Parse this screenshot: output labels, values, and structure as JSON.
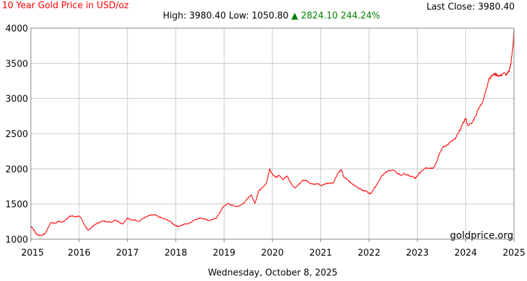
{
  "header": {
    "title": "10 Year Gold Price in USD/oz",
    "last_close_label": "Last Close:",
    "last_close_value": "3980.40",
    "high_label": "High:",
    "high_value": "3980.40",
    "low_label": "Low:",
    "low_value": "1050.80",
    "change_arrow": "▲",
    "change_value": "2824.10",
    "change_pct": "244.24%"
  },
  "footer": {
    "date": "Wednesday, October 8, 2025",
    "watermark": "goldprice.org"
  },
  "colors": {
    "line": "#ff0000",
    "title": "#ff0000",
    "change": "#008000",
    "grid": "#c8c8c8",
    "axis": "#808080"
  },
  "chart_data": {
    "type": "line",
    "title": "10 Year Gold Price in USD/oz",
    "xlabel": "",
    "ylabel": "",
    "xlim": [
      2015,
      2025
    ],
    "ylim": [
      1000,
      4000
    ],
    "x_ticks": [
      "2015",
      "2016",
      "2017",
      "2018",
      "2019",
      "2020",
      "2021",
      "2022",
      "2023",
      "2024",
      "2025"
    ],
    "y_ticks": [
      "1000",
      "1500",
      "2000",
      "2500",
      "3000",
      "3500",
      "4000"
    ],
    "grid": true,
    "series": [
      {
        "color": "#ff0000",
        "points": [
          [
            2015.0,
            1185
          ],
          [
            2015.05,
            1150
          ],
          [
            2015.1,
            1085
          ],
          [
            2015.15,
            1060
          ],
          [
            2015.22,
            1055
          ],
          [
            2015.3,
            1080
          ],
          [
            2015.36,
            1165
          ],
          [
            2015.42,
            1240
          ],
          [
            2015.5,
            1225
          ],
          [
            2015.58,
            1255
          ],
          [
            2015.66,
            1240
          ],
          [
            2015.74,
            1290
          ],
          [
            2015.8,
            1325
          ],
          [
            2015.86,
            1330
          ],
          [
            2015.92,
            1320
          ],
          [
            2016.0,
            1325
          ],
          [
            2016.06,
            1280
          ],
          [
            2016.12,
            1190
          ],
          [
            2016.18,
            1130
          ],
          [
            2016.26,
            1165
          ],
          [
            2016.34,
            1215
          ],
          [
            2016.42,
            1240
          ],
          [
            2016.5,
            1260
          ],
          [
            2016.58,
            1250
          ],
          [
            2016.66,
            1240
          ],
          [
            2016.74,
            1275
          ],
          [
            2016.82,
            1250
          ],
          [
            2016.9,
            1215
          ],
          [
            2017.0,
            1300
          ],
          [
            2017.08,
            1270
          ],
          [
            2017.16,
            1275
          ],
          [
            2017.24,
            1255
          ],
          [
            2017.32,
            1295
          ],
          [
            2017.4,
            1320
          ],
          [
            2017.48,
            1340
          ],
          [
            2017.56,
            1345
          ],
          [
            2017.64,
            1320
          ],
          [
            2017.72,
            1300
          ],
          [
            2017.8,
            1280
          ],
          [
            2017.88,
            1255
          ],
          [
            2017.96,
            1210
          ],
          [
            2018.04,
            1180
          ],
          [
            2018.12,
            1200
          ],
          [
            2018.2,
            1215
          ],
          [
            2018.28,
            1225
          ],
          [
            2018.36,
            1265
          ],
          [
            2018.44,
            1290
          ],
          [
            2018.52,
            1300
          ],
          [
            2018.6,
            1290
          ],
          [
            2018.68,
            1265
          ],
          [
            2018.76,
            1280
          ],
          [
            2018.84,
            1295
          ],
          [
            2018.92,
            1390
          ],
          [
            2019.0,
            1475
          ],
          [
            2019.08,
            1505
          ],
          [
            2019.16,
            1485
          ],
          [
            2019.24,
            1465
          ],
          [
            2019.32,
            1470
          ],
          [
            2019.4,
            1510
          ],
          [
            2019.48,
            1570
          ],
          [
            2019.56,
            1630
          ],
          [
            2019.64,
            1510
          ],
          [
            2019.72,
            1690
          ],
          [
            2019.8,
            1740
          ],
          [
            2019.88,
            1800
          ],
          [
            2019.94,
            2000
          ],
          [
            2020.0,
            1930
          ],
          [
            2020.06,
            1880
          ],
          [
            2020.14,
            1900
          ],
          [
            2020.22,
            1850
          ],
          [
            2020.3,
            1900
          ],
          [
            2020.38,
            1800
          ],
          [
            2020.46,
            1730
          ],
          [
            2020.54,
            1770
          ],
          [
            2020.62,
            1840
          ],
          [
            2020.7,
            1840
          ],
          [
            2020.78,
            1790
          ],
          [
            2020.86,
            1780
          ],
          [
            2020.94,
            1790
          ],
          [
            2021.02,
            1760
          ],
          [
            2021.1,
            1790
          ],
          [
            2021.18,
            1800
          ],
          [
            2021.26,
            1800
          ],
          [
            2021.34,
            1920
          ],
          [
            2021.42,
            1990
          ],
          [
            2021.48,
            1880
          ],
          [
            2021.56,
            1840
          ],
          [
            2021.64,
            1790
          ],
          [
            2021.72,
            1760
          ],
          [
            2021.8,
            1720
          ],
          [
            2021.88,
            1690
          ],
          [
            2021.96,
            1680
          ],
          [
            2022.02,
            1640
          ],
          [
            2022.1,
            1720
          ],
          [
            2022.18,
            1800
          ],
          [
            2022.26,
            1900
          ],
          [
            2022.34,
            1940
          ],
          [
            2022.42,
            1980
          ],
          [
            2022.5,
            1980
          ],
          [
            2022.58,
            1940
          ],
          [
            2022.66,
            1910
          ],
          [
            2022.74,
            1930
          ],
          [
            2022.82,
            1900
          ],
          [
            2022.9,
            1890
          ],
          [
            2022.96,
            1860
          ],
          [
            2023.02,
            1920
          ],
          [
            2023.1,
            1980
          ],
          [
            2023.18,
            2020
          ],
          [
            2023.26,
            2010
          ],
          [
            2023.34,
            2020
          ],
          [
            2023.4,
            2100
          ],
          [
            2023.46,
            2220
          ],
          [
            2023.54,
            2320
          ],
          [
            2023.62,
            2340
          ],
          [
            2023.7,
            2390
          ],
          [
            2023.78,
            2420
          ],
          [
            2023.86,
            2520
          ],
          [
            2023.94,
            2640
          ],
          [
            2024.0,
            2720
          ],
          [
            2024.04,
            2620
          ],
          [
            2024.12,
            2640
          ],
          [
            2024.2,
            2740
          ],
          [
            2024.28,
            2880
          ],
          [
            2024.36,
            2960
          ],
          [
            2024.42,
            3120
          ],
          [
            2024.48,
            3280
          ],
          [
            2024.54,
            3320
          ],
          [
            2024.6,
            3350
          ],
          [
            2024.66,
            3330
          ],
          [
            2024.72,
            3320
          ],
          [
            2024.78,
            3360
          ],
          [
            2024.84,
            3340
          ],
          [
            2024.9,
            3380
          ],
          [
            2024.94,
            3520
          ],
          [
            2024.98,
            3750
          ],
          [
            2025.0,
            3980
          ]
        ]
      }
    ]
  }
}
